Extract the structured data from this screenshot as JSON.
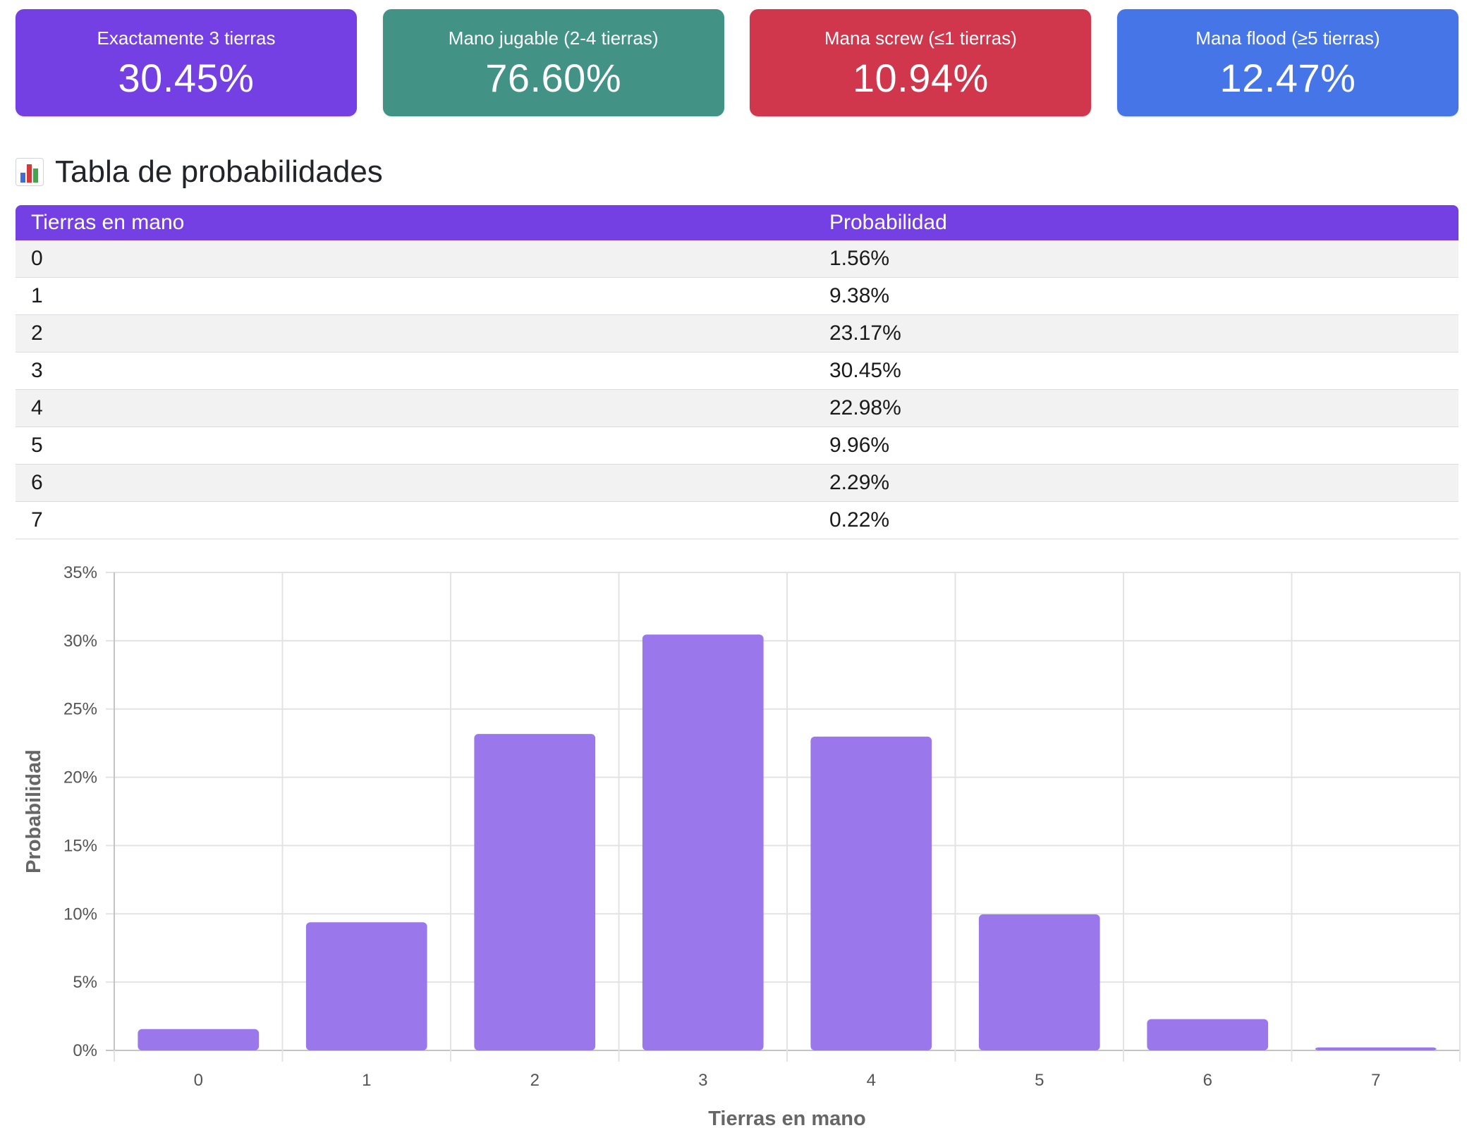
{
  "cards": [
    {
      "label": "Exactamente 3 tierras",
      "value": "30.45%",
      "color": "#7440e4"
    },
    {
      "label": "Mano jugable (2-4 tierras)",
      "value": "76.60%",
      "color": "#439286"
    },
    {
      "label": "Mana screw (≤1 tierras)",
      "value": "10.94%",
      "color": "#d0374c"
    },
    {
      "label": "Mana flood (≥5 tierras)",
      "value": "12.47%",
      "color": "#4575e7"
    }
  ],
  "section": {
    "icon": "bar-chart-icon",
    "title": "Tabla de probabilidades"
  },
  "table": {
    "headers": [
      "Tierras en mano",
      "Probabilidad"
    ],
    "rows": [
      [
        "0",
        "1.56%"
      ],
      [
        "1",
        "9.38%"
      ],
      [
        "2",
        "23.17%"
      ],
      [
        "3",
        "30.45%"
      ],
      [
        "4",
        "22.98%"
      ],
      [
        "5",
        "9.96%"
      ],
      [
        "6",
        "2.29%"
      ],
      [
        "7",
        "0.22%"
      ]
    ]
  },
  "chart_data": {
    "type": "bar",
    "categories": [
      "0",
      "1",
      "2",
      "3",
      "4",
      "5",
      "6",
      "7"
    ],
    "values": [
      1.56,
      9.38,
      23.17,
      30.45,
      22.98,
      9.96,
      2.29,
      0.22
    ],
    "xlabel": "Tierras en mano",
    "ylabel": "Probabilidad",
    "ylim": [
      0,
      35
    ],
    "yticks": [
      "0%",
      "5%",
      "10%",
      "15%",
      "20%",
      "25%",
      "30%",
      "35%"
    ],
    "grid": true,
    "bar_color": "#9b77ec"
  }
}
